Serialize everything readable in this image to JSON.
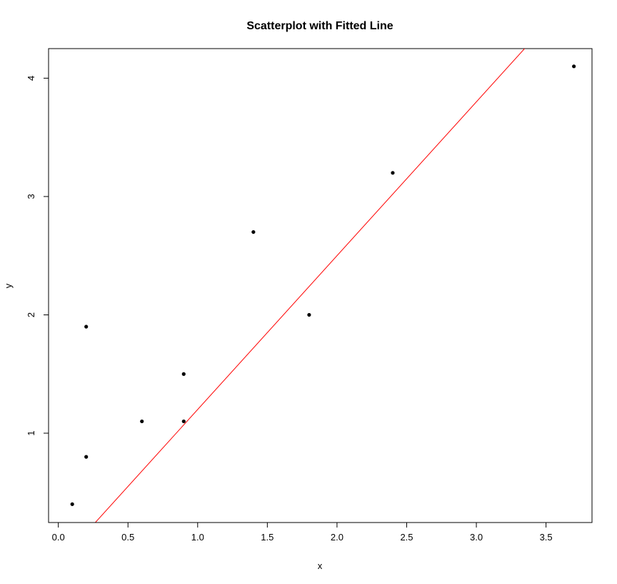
{
  "chart_data": {
    "type": "scatter",
    "title": "Scatterplot with Fitted Line",
    "xlabel": "x",
    "ylabel": "y",
    "xlim": [
      -0.07,
      3.83
    ],
    "ylim": [
      0.245,
      4.25
    ],
    "x_ticks": [
      0.0,
      0.5,
      1.0,
      1.5,
      2.0,
      2.5,
      3.0,
      3.5
    ],
    "x_tick_labels": [
      "0.0",
      "0.5",
      "1.0",
      "1.5",
      "2.0",
      "2.5",
      "3.0",
      "3.5"
    ],
    "y_ticks": [
      1,
      2,
      3,
      4
    ],
    "y_tick_labels": [
      "1",
      "2",
      "3",
      "4"
    ],
    "grid": false,
    "legend": "none",
    "series": [
      {
        "x": [
          0.1,
          0.2,
          0.2,
          0.6,
          0.9,
          0.9,
          1.4,
          1.8,
          2.4,
          3.7
        ],
        "y": [
          0.4,
          0.8,
          1.9,
          1.1,
          1.1,
          1.5,
          2.7,
          2.0,
          3.2,
          4.1
        ],
        "color": "#000000"
      }
    ],
    "fitted_line": {
      "intercept": -0.1,
      "slope": 1.3,
      "color": "#ff0000"
    }
  }
}
